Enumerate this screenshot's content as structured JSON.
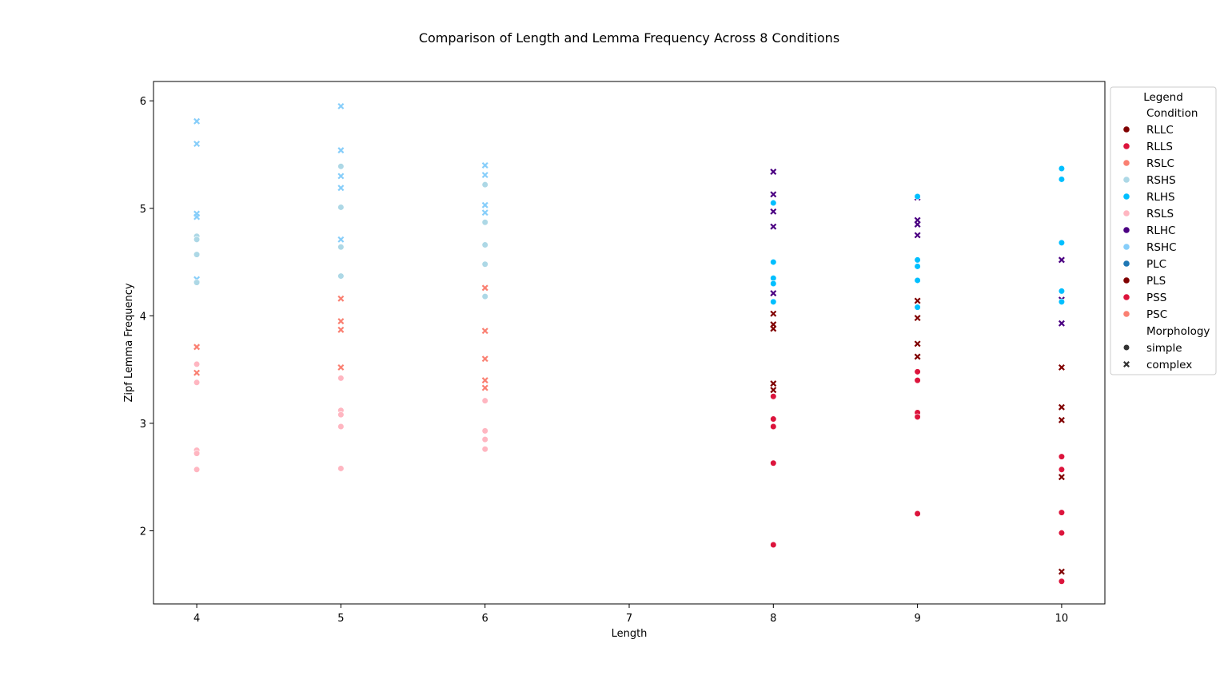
{
  "chart_data": {
    "type": "scatter",
    "title": "Comparison of Length and Lemma Frequency Across 8 Conditions",
    "xlabel": "Length",
    "ylabel": "Zipf Lemma Frequency",
    "xlim": [
      3.7,
      10.3
    ],
    "ylim": [
      1.32,
      6.18
    ],
    "xticks": [
      4,
      5,
      6,
      7,
      8,
      9,
      10
    ],
    "yticks": [
      2,
      3,
      4,
      5,
      6
    ],
    "grid": false,
    "legend": {
      "position": "right",
      "title": "Legend",
      "hue_title": "Condition",
      "style_title": "Morphology",
      "conditions": [
        {
          "name": "RLLC",
          "color": "#800000"
        },
        {
          "name": "RLLS",
          "color": "#dc143c"
        },
        {
          "name": "RSLC",
          "color": "#fa8072"
        },
        {
          "name": "RSHS",
          "color": "#add8e6"
        },
        {
          "name": "RLHS",
          "color": "#00bfff"
        },
        {
          "name": "RSLS",
          "color": "#ffb6c1"
        },
        {
          "name": "RLHC",
          "color": "#4b0082"
        },
        {
          "name": "RSHC",
          "color": "#87cefa"
        },
        {
          "name": "PLC",
          "color": "#1f77b4"
        },
        {
          "name": "PLS",
          "color": "#800000"
        },
        {
          "name": "PSS",
          "color": "#dc143c"
        },
        {
          "name": "PSC",
          "color": "#fa8072"
        }
      ],
      "morphologies": [
        {
          "name": "simple",
          "marker": "circle"
        },
        {
          "name": "complex",
          "marker": "x"
        }
      ]
    },
    "series": [
      {
        "name": "RSHC",
        "color": "#87cefa",
        "marker": "x",
        "points": [
          [
            4,
            5.81
          ],
          [
            4,
            5.6
          ],
          [
            4,
            4.95
          ],
          [
            4,
            4.92
          ],
          [
            4,
            4.34
          ],
          [
            5,
            5.95
          ],
          [
            5,
            5.54
          ],
          [
            5,
            5.3
          ],
          [
            5,
            5.19
          ],
          [
            5,
            4.71
          ],
          [
            6,
            5.4
          ],
          [
            6,
            5.31
          ],
          [
            6,
            5.03
          ],
          [
            6,
            4.96
          ]
        ]
      },
      {
        "name": "RSHS",
        "color": "#add8e6",
        "marker": "circle",
        "points": [
          [
            4,
            4.74
          ],
          [
            4,
            4.71
          ],
          [
            4,
            4.57
          ],
          [
            4,
            4.31
          ],
          [
            5,
            5.39
          ],
          [
            5,
            5.01
          ],
          [
            5,
            4.64
          ],
          [
            5,
            4.37
          ],
          [
            6,
            5.22
          ],
          [
            6,
            4.87
          ],
          [
            6,
            4.66
          ],
          [
            6,
            4.48
          ],
          [
            6,
            4.18
          ]
        ]
      },
      {
        "name": "RSLC",
        "color": "#fa8072",
        "marker": "x",
        "points": [
          [
            4,
            3.71
          ],
          [
            4,
            3.47
          ],
          [
            5,
            4.16
          ],
          [
            5,
            3.95
          ],
          [
            5,
            3.87
          ],
          [
            5,
            3.52
          ],
          [
            6,
            4.26
          ],
          [
            6,
            3.86
          ],
          [
            6,
            3.6
          ],
          [
            6,
            3.4
          ],
          [
            6,
            3.33
          ]
        ]
      },
      {
        "name": "RSLS",
        "color": "#ffb6c1",
        "marker": "circle",
        "points": [
          [
            4,
            3.55
          ],
          [
            4,
            3.38
          ],
          [
            4,
            2.75
          ],
          [
            4,
            2.72
          ],
          [
            4,
            2.57
          ],
          [
            5,
            3.42
          ],
          [
            5,
            3.12
          ],
          [
            5,
            3.08
          ],
          [
            5,
            2.97
          ],
          [
            5,
            2.58
          ],
          [
            6,
            3.21
          ],
          [
            6,
            2.93
          ],
          [
            6,
            2.85
          ],
          [
            6,
            2.76
          ]
        ]
      },
      {
        "name": "RLHC",
        "color": "#4b0082",
        "marker": "x",
        "points": [
          [
            8,
            5.34
          ],
          [
            8,
            5.13
          ],
          [
            8,
            4.97
          ],
          [
            8,
            4.83
          ],
          [
            8,
            4.21
          ],
          [
            9,
            5.1
          ],
          [
            9,
            4.89
          ],
          [
            9,
            4.85
          ],
          [
            9,
            4.75
          ],
          [
            10,
            4.52
          ],
          [
            10,
            3.93
          ],
          [
            10,
            4.15
          ]
        ]
      },
      {
        "name": "RLHS",
        "color": "#00bfff",
        "marker": "circle",
        "points": [
          [
            8,
            5.05
          ],
          [
            8,
            4.5
          ],
          [
            8,
            4.35
          ],
          [
            8,
            4.3
          ],
          [
            8,
            4.13
          ],
          [
            9,
            5.11
          ],
          [
            9,
            4.52
          ],
          [
            9,
            4.46
          ],
          [
            9,
            4.33
          ],
          [
            9,
            4.08
          ],
          [
            10,
            5.37
          ],
          [
            10,
            5.27
          ],
          [
            10,
            4.68
          ],
          [
            10,
            4.23
          ],
          [
            10,
            4.13
          ]
        ]
      },
      {
        "name": "RLLC",
        "color": "#800000",
        "marker": "x",
        "points": [
          [
            8,
            4.02
          ],
          [
            8,
            3.92
          ],
          [
            8,
            3.88
          ],
          [
            8,
            3.37
          ],
          [
            8,
            3.31
          ],
          [
            9,
            4.14
          ],
          [
            9,
            3.98
          ],
          [
            9,
            3.74
          ],
          [
            9,
            3.62
          ],
          [
            10,
            3.52
          ],
          [
            10,
            3.15
          ],
          [
            10,
            3.03
          ],
          [
            10,
            2.5
          ],
          [
            10,
            1.62
          ]
        ]
      },
      {
        "name": "RLLS",
        "color": "#dc143c",
        "marker": "circle",
        "points": [
          [
            8,
            3.25
          ],
          [
            8,
            3.04
          ],
          [
            8,
            2.97
          ],
          [
            8,
            2.63
          ],
          [
            8,
            1.87
          ],
          [
            9,
            3.48
          ],
          [
            9,
            3.4
          ],
          [
            9,
            3.1
          ],
          [
            9,
            3.06
          ],
          [
            9,
            2.16
          ],
          [
            10,
            2.69
          ],
          [
            10,
            2.57
          ],
          [
            10,
            2.17
          ],
          [
            10,
            1.98
          ],
          [
            10,
            1.53
          ]
        ]
      }
    ]
  }
}
